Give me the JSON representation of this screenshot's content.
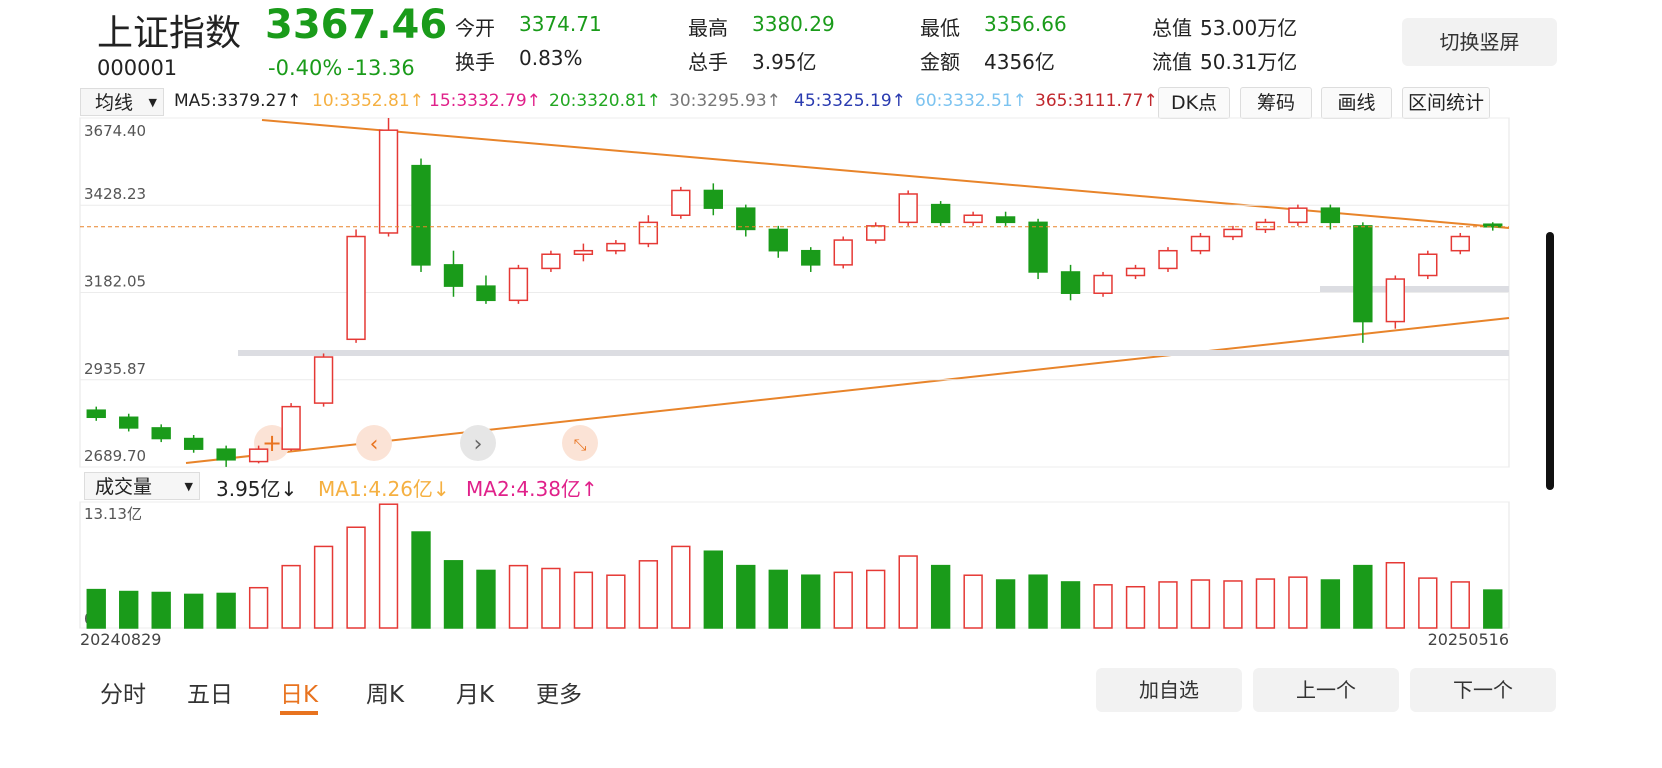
{
  "header": {
    "name": "上证指数",
    "price": "3367.46",
    "code": "000001",
    "change_pct": "-0.40%",
    "change": "-13.36"
  },
  "stats": [
    {
      "label": "今开",
      "value": "3374.71"
    },
    {
      "label": "换手",
      "value": "0.83%"
    },
    {
      "label": "最高",
      "value": "3380.29"
    },
    {
      "label": "总手",
      "value": "3.95亿"
    },
    {
      "label": "最低",
      "value": "3356.66"
    },
    {
      "label": "金额",
      "value": "4356亿"
    },
    {
      "label": "总值",
      "value": "53.00万亿"
    },
    {
      "label": "流值",
      "value": "50.31万亿"
    }
  ],
  "rotate_button": "切换竖屏",
  "ma_bar": {
    "selector": "均线",
    "items": [
      {
        "text": "MA5:3379.27↑",
        "color": "#222222"
      },
      {
        "text": "10:3352.81↑",
        "color": "#f5b041"
      },
      {
        "text": "15:3332.79↑",
        "color": "#e0218a"
      },
      {
        "text": "20:3320.81↑",
        "color": "#22a722"
      },
      {
        "text": "30:3295.93↑",
        "color": "#777777"
      },
      {
        "text": "45:3325.19↑",
        "color": "#2a3bb0"
      },
      {
        "text": "60:3332.51↑",
        "color": "#7cc3f0"
      },
      {
        "text": "365:3111.77↑",
        "color": "#c0272d"
      }
    ]
  },
  "tools": [
    "DK点",
    "筹码",
    "画线",
    "区间统计"
  ],
  "chart_data": {
    "type": "candlestick",
    "up_color": "#e53935",
    "down_color": "#1a9b1a",
    "categories": [
      "20240829",
      null,
      null,
      null,
      null,
      null,
      null,
      null,
      null,
      null,
      null,
      null,
      null,
      null,
      null,
      null,
      null,
      null,
      null,
      null,
      null,
      null,
      null,
      null,
      null,
      null,
      null,
      null,
      null,
      null,
      null,
      null,
      null,
      null,
      null,
      null,
      null,
      null,
      null,
      null,
      null,
      null,
      null,
      "20250516"
    ],
    "open": [
      2850,
      2830,
      2800,
      2770,
      2740,
      2705,
      2740,
      2870,
      3050,
      3350,
      3540,
      3260,
      3200,
      3160,
      3250,
      3290,
      3300,
      3320,
      3400,
      3470,
      3420,
      3360,
      3300,
      3260,
      3330,
      3380,
      3430,
      3380,
      3395,
      3380,
      3240,
      3180,
      3230,
      3250,
      3300,
      3340,
      3360,
      3380,
      3420,
      3370,
      3100,
      3230,
      3300,
      3374.71
    ],
    "close": [
      2830,
      2800,
      2770,
      2740,
      2710,
      2740,
      2860,
      3000,
      3340,
      3640,
      3260,
      3200,
      3160,
      3250,
      3290,
      3300,
      3320,
      3380,
      3470,
      3420,
      3360,
      3300,
      3260,
      3330,
      3370,
      3460,
      3380,
      3400,
      3380,
      3240,
      3180,
      3230,
      3250,
      3300,
      3340,
      3360,
      3380,
      3420,
      3380,
      3100,
      3220,
      3290,
      3340,
      3367.46
    ],
    "high": [
      2860,
      2840,
      2810,
      2780,
      2750,
      2750,
      2870,
      3010,
      3360,
      3674.4,
      3560,
      3300,
      3230,
      3260,
      3300,
      3320,
      3330,
      3400,
      3480,
      3490,
      3430,
      3370,
      3310,
      3340,
      3380,
      3470,
      3440,
      3410,
      3410,
      3390,
      3260,
      3240,
      3260,
      3310,
      3350,
      3370,
      3390,
      3430,
      3430,
      3380,
      3230,
      3300,
      3350,
      3380.29
    ],
    "low": [
      2820,
      2790,
      2760,
      2730,
      2690,
      2700,
      2735,
      2860,
      3040,
      3340,
      3240,
      3170,
      3150,
      3150,
      3240,
      3270,
      3290,
      3310,
      3390,
      3400,
      3340,
      3280,
      3240,
      3250,
      3320,
      3370,
      3370,
      3370,
      3370,
      3220,
      3160,
      3170,
      3220,
      3240,
      3290,
      3330,
      3350,
      3370,
      3360,
      3040,
      3080,
      3220,
      3290,
      3356.66
    ],
    "ylim": [
      2689.7,
      3674.4
    ],
    "yticks": [
      {
        "value": 2689.7,
        "label": "2689.70"
      },
      2935.87,
      3182.05,
      3428.23,
      {
        "value": 3674.4,
        "label": "3674.40"
      }
    ],
    "volume": [
      4.0,
      3.8,
      3.7,
      3.5,
      3.6,
      4.2,
      6.5,
      8.5,
      10.5,
      12.9,
      10.0,
      7.0,
      6.0,
      6.5,
      6.2,
      5.8,
      5.5,
      7.0,
      8.5,
      8.0,
      6.5,
      6.0,
      5.5,
      5.8,
      6.0,
      7.5,
      6.5,
      5.5,
      5.0,
      5.5,
      4.8,
      4.5,
      4.3,
      4.8,
      5.0,
      4.9,
      5.1,
      5.3,
      5.0,
      6.5,
      6.8,
      5.2,
      4.8,
      3.95
    ],
    "vlim": [
      0,
      13.13
    ],
    "vticks": [
      0,
      {
        "value": 13.13,
        "label": "13.13亿"
      }
    ]
  },
  "volume_bar": {
    "selector": "成交量",
    "items": [
      {
        "text": "3.95亿↓",
        "color": "#222222"
      },
      {
        "text": "MA1:4.26亿↓",
        "color": "#f5b041"
      },
      {
        "text": "MA2:4.38亿↑",
        "color": "#e0218a"
      }
    ]
  },
  "tabs": [
    "分时",
    "五日",
    "日K",
    "周K",
    "月K",
    "更多"
  ],
  "active_tab": 2,
  "bottom_buttons": [
    "加自选",
    "上一个",
    "下一个"
  ]
}
